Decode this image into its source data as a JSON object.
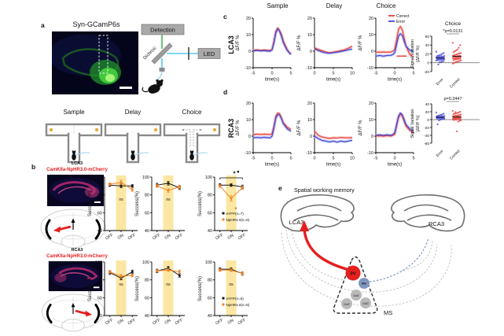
{
  "figure": {
    "panel_a": {
      "label": "a",
      "image_title": "Syn-GCamP6s",
      "detection": "Detection",
      "dichroic": "Dichroic",
      "led": "LED",
      "mazes": [
        {
          "title": "Sample",
          "rewards": [
            "left",
            "right"
          ],
          "divider": true
        },
        {
          "title": "Delay",
          "rewards": [
            "right"
          ]
        },
        {
          "title": "Choice",
          "rewards": [
            "right"
          ],
          "arrows": true
        }
      ]
    },
    "panel_b": {
      "label": "b",
      "groups": [
        {
          "title": "LCA3",
          "virus": "CamKIIa-NpHR3.0-mCherry",
          "arrow_side": "left"
        },
        {
          "title": "RCA3",
          "virus": "CamKIIa-NpHR3.0-mCherry",
          "arrow_side": "right"
        }
      ]
    },
    "panel_c": {
      "label": "c",
      "row_label": "LCA3",
      "col_titles": [
        "Sample",
        "Delay",
        "Choice"
      ]
    },
    "panel_d": {
      "label": "d",
      "row_label": "RCA3"
    },
    "panel_e": {
      "label": "e",
      "title": "Spatial working memory",
      "left_region": "LCA3",
      "right_region": "RCA3",
      "nucleus": "MS",
      "cells": {
        "pv_red": "PV",
        "pv_blue": "PV",
        "chat1": "ChAT",
        "chat2": "ChAT",
        "chat3": "ChAT"
      }
    },
    "colors": {
      "correct": "#e8413c",
      "error": "#4446d8",
      "eyfp": "#1a1a1a",
      "nphr": "#f08224",
      "highlight": "#fbe7a3"
    }
  },
  "chart_data": {
    "lca3_traces": {
      "type": "line",
      "ylabel": "ΔF/F %",
      "ylim": [
        -10,
        20
      ],
      "yticks": [
        20,
        10,
        0,
        -10
      ],
      "plots": [
        {
          "title": "Sample",
          "xlabel": "time(s)",
          "xlim": [
            -5,
            5
          ],
          "xticks": [
            -5,
            0,
            5
          ],
          "x": [
            -5,
            -4,
            -3,
            -2,
            -1,
            -0.5,
            0,
            0.5,
            1,
            1.5,
            2,
            2.5,
            3,
            4,
            5
          ],
          "series": [
            {
              "name": "Correct",
              "color": "#e8413c",
              "band": "#f5a9a6",
              "values": [
                0.5,
                0.8,
                0.5,
                0.7,
                0.5,
                0.5,
                1,
                6,
                12,
                14,
                12.5,
                10,
                6,
                1,
                -2
              ]
            },
            {
              "name": "Error",
              "color": "#4446d8",
              "band": "#9fa8ef",
              "values": [
                0.2,
                0.4,
                0.2,
                0.3,
                0,
                0,
                0.8,
                5,
                11,
                13.5,
                12,
                9,
                5,
                0.5,
                -2
              ]
            }
          ]
        },
        {
          "title": "Delay",
          "xlabel": "time(s)",
          "xlim": [
            0,
            10
          ],
          "xticks": [
            0,
            5,
            10
          ],
          "x": [
            0,
            1,
            2,
            3,
            4,
            5,
            6,
            7,
            8,
            9,
            10
          ],
          "series": [
            {
              "name": "Correct",
              "color": "#e8413c",
              "band": "#f5a9a6",
              "values": [
                2,
                1,
                0.3,
                -0.5,
                -1,
                -0.6,
                -0.2,
                0.3,
                0.8,
                1.8,
                3
              ]
            },
            {
              "name": "Error",
              "color": "#4446d8",
              "band": "#9fa8ef",
              "values": [
                1.5,
                0.4,
                -0.5,
                -1,
                -1.3,
                -0.9,
                -0.6,
                -0.2,
                0.3,
                0.8,
                1.3
              ]
            }
          ]
        },
        {
          "title": "Choice",
          "xlabel": "time(s)",
          "xlim": [
            -5,
            5
          ],
          "xticks": [
            -5,
            0,
            5
          ],
          "legend": true,
          "sig_bar": {
            "x1": 0.5,
            "x2": 3.2,
            "y": -3,
            "color": "#e8413c"
          },
          "x": [
            -5,
            -4,
            -3,
            -2,
            -1,
            -0.5,
            0,
            0.5,
            1,
            1.5,
            2,
            2.5,
            3,
            4,
            5
          ],
          "series": [
            {
              "name": "Correct",
              "color": "#e8413c",
              "band": "#f5a9a6",
              "values": [
                -0.5,
                -0.6,
                -0.5,
                -0.6,
                -0.5,
                0,
                1,
                7,
                13,
                15,
                13,
                8,
                3,
                -2,
                -3.5
              ]
            },
            {
              "name": "Error",
              "color": "#4446d8",
              "band": "#9fa8ef",
              "values": [
                -3,
                -2.6,
                -3,
                -2.6,
                -2.5,
                -2,
                -1,
                4,
                9,
                10.5,
                9.5,
                6,
                3,
                0.5,
                0
              ]
            }
          ]
        }
      ]
    },
    "rca3_traces": {
      "type": "line",
      "ylabel": "ΔF/F %",
      "ylim": [
        -10,
        20
      ],
      "yticks": [
        20,
        10,
        0,
        -10
      ],
      "plots": [
        {
          "title": "Sample",
          "xlabel": "time(s)",
          "xlim": [
            -5,
            5
          ],
          "xticks": [
            -5,
            0,
            5
          ],
          "x": [
            -5,
            -4,
            -3,
            -2,
            -1,
            -0.5,
            0,
            0.5,
            1,
            1.5,
            2,
            2.5,
            3,
            4,
            5
          ],
          "series": [
            {
              "name": "Correct",
              "color": "#e8413c",
              "band": "#f5a9a6",
              "values": [
                1,
                1.2,
                1,
                1.2,
                1,
                1,
                1.5,
                6,
                12,
                14,
                13.5,
                11,
                8,
                5.5,
                4
              ]
            },
            {
              "name": "Error",
              "color": "#4446d8",
              "band": "#9fa8ef",
              "values": [
                -1,
                -0.8,
                -1,
                -0.7,
                -1,
                -1,
                0,
                5,
                11,
                13,
                12.8,
                10.5,
                7.5,
                4.5,
                3
              ]
            }
          ]
        },
        {
          "title": "Delay",
          "xlabel": "time(s)",
          "xlim": [
            0,
            10
          ],
          "xticks": [
            0,
            5,
            10
          ],
          "x": [
            0,
            1,
            2,
            3,
            4,
            5,
            6,
            7,
            8,
            9,
            10
          ],
          "series": [
            {
              "name": "Correct",
              "color": "#e8413c",
              "band": "#f5a9a6",
              "values": [
                3,
                0.5,
                -0.5,
                -1,
                -1.4,
                -1,
                -1.1,
                -0.8,
                -1,
                -1,
                -0.9
              ]
            },
            {
              "name": "Error",
              "color": "#4446d8",
              "band": "#9fa8ef",
              "values": [
                0,
                -1.5,
                -2.6,
                -3,
                -3.5,
                -3,
                -3.6,
                -3,
                -3.4,
                -3,
                -2.5
              ]
            }
          ]
        },
        {
          "title": "Choice",
          "xlabel": "time(s)",
          "xlim": [
            -5,
            5
          ],
          "xticks": [
            -5,
            0,
            5
          ],
          "x": [
            -5,
            -4,
            -3,
            -2,
            -1,
            -0.5,
            0,
            0.5,
            1,
            1.5,
            2,
            2.5,
            3,
            4,
            5
          ],
          "series": [
            {
              "name": "Correct",
              "color": "#e8413c",
              "band": "#f5a9a6",
              "values": [
                0,
                0.2,
                0,
                0.3,
                0,
                0.5,
                1,
                6,
                11,
                13.5,
                12,
                9,
                6,
                3.5,
                2
              ]
            },
            {
              "name": "Error",
              "color": "#4446d8",
              "band": "#9fa8ef",
              "values": [
                0.5,
                0.8,
                0.5,
                0.8,
                0.5,
                1,
                2,
                7,
                12,
                14,
                13,
                10,
                7,
                4.5,
                3
              ]
            }
          ]
        }
      ]
    },
    "lca3_scatter": {
      "type": "scatter",
      "title": "Choice",
      "p_label": "*p=0.0131",
      "ylabel_lines": [
        "Signal Variation",
        "(ΔF/F %)"
      ],
      "ylim": [
        -20,
        60
      ],
      "yticks": [
        60,
        40,
        20,
        0,
        -20
      ],
      "groups": [
        {
          "label": "Error",
          "color": "#4446d8",
          "values": [
            25,
            22,
            20,
            18,
            17,
            16,
            15,
            15,
            14,
            14,
            13,
            13,
            12,
            12,
            11,
            11,
            10,
            10,
            9,
            9,
            8,
            8,
            7,
            7,
            6,
            6,
            5,
            4,
            3,
            2,
            1,
            -4
          ]
        },
        {
          "label": "Correct",
          "color": "#e8413c",
          "values": [
            45,
            40,
            34,
            30,
            28,
            26,
            24,
            22,
            21,
            20,
            19,
            18,
            17,
            16,
            16,
            15,
            15,
            14,
            14,
            13,
            13,
            12,
            12,
            11,
            11,
            10,
            10,
            9,
            9,
            8,
            8,
            7,
            6,
            5,
            4,
            3,
            2,
            1,
            0,
            -2
          ]
        }
      ]
    },
    "rca3_scatter": {
      "type": "scatter",
      "p_label": "p=0.3447",
      "ylabel_lines": [
        "Signal Variation",
        "(ΔF/F %)"
      ],
      "ylim": [
        -60,
        40
      ],
      "yticks": [
        40,
        20,
        0,
        -20,
        -40,
        -60
      ],
      "groups": [
        {
          "label": "Error",
          "color": "#4446d8",
          "values": [
            18,
            15,
            13,
            12,
            11,
            10,
            9,
            9,
            8,
            8,
            7,
            7,
            6,
            6,
            5,
            5,
            4,
            4,
            3,
            3,
            2,
            2,
            1,
            0,
            -2,
            -12
          ]
        },
        {
          "label": "Correct",
          "color": "#e8413c",
          "values": [
            22,
            20,
            18,
            17,
            16,
            15,
            14,
            13,
            12,
            11,
            10,
            10,
            9,
            9,
            8,
            8,
            7,
            7,
            6,
            6,
            5,
            5,
            4,
            4,
            3,
            3,
            2,
            2,
            1,
            1,
            0,
            0,
            -1,
            -2,
            -3,
            -5,
            -30,
            19
          ]
        }
      ]
    },
    "lca3_success": {
      "type": "line",
      "ylabel": "Success(%)",
      "ylim": [
        40,
        100
      ],
      "yticks": [
        40,
        60,
        80,
        100
      ],
      "categories": [
        "OFF",
        "ON",
        "OFF"
      ],
      "highlight": "#fbe7a3",
      "highlight_index": 1,
      "legend": [
        {
          "name": "eYFP(n=7)",
          "color": "#1a1a1a",
          "marker": "square"
        },
        {
          "name": "NpHR3.0(n=9)",
          "color": "#f08224",
          "marker": "circle"
        }
      ],
      "plots": [
        {
          "sig": "ns",
          "series": [
            {
              "values": [
                91,
                90,
                90
              ],
              "errors": [
                1.5,
                2,
                1.5
              ]
            },
            {
              "values": [
                92,
                94,
                86
              ],
              "errors": [
                1.5,
                2.5,
                2
              ]
            }
          ]
        },
        {
          "sig": "ns",
          "series": [
            {
              "values": [
                91,
                93,
                88
              ],
              "errors": [
                2,
                2,
                2
              ]
            },
            {
              "values": [
                90,
                85,
                89
              ],
              "errors": [
                1.5,
                2,
                2
              ]
            }
          ]
        },
        {
          "sig": "*",
          "bracket": true,
          "show_legend": true,
          "points": [
            {
              "fx": 0.71,
              "value": 106,
              "color": "#1a1a1a"
            },
            {
              "fx": 0.64,
              "value": 65,
              "color": "#f08224"
            }
          ],
          "series": [
            {
              "values": [
                91,
                91,
                89
              ],
              "errors": [
                1.5,
                1.5,
                2
              ]
            },
            {
              "values": [
                90,
                76,
                88
              ],
              "errors": [
                1.5,
                3,
                2
              ]
            }
          ]
        }
      ]
    },
    "rca3_success": {
      "type": "line",
      "ylabel": "Success(%)",
      "ylim": [
        40,
        100
      ],
      "yticks": [
        40,
        60,
        80,
        100
      ],
      "categories": [
        "OFF",
        "ON",
        "OFF"
      ],
      "highlight": "#fbe7a3",
      "highlight_index": 1,
      "legend": [
        {
          "name": "eYFP(n=6)",
          "color": "#1a1a1a",
          "marker": "square"
        },
        {
          "name": "NpHR3.0(n=8)",
          "color": "#f08224",
          "marker": "circle"
        }
      ],
      "plots": [
        {
          "sig": "ns",
          "series": [
            {
              "values": [
                88,
                82,
                89
              ],
              "errors": [
                2,
                2,
                2
              ]
            },
            {
              "values": [
                89,
                84,
                85
              ],
              "errors": [
                1.5,
                2,
                1.5
              ]
            }
          ]
        },
        {
          "sig": "ns",
          "series": [
            {
              "values": [
                90,
                93,
                85
              ],
              "errors": [
                2,
                2,
                2
              ]
            },
            {
              "values": [
                90,
                91,
                89
              ],
              "errors": [
                1.5,
                1.5,
                2
              ]
            }
          ]
        },
        {
          "sig": "ns",
          "show_legend": true,
          "series": [
            {
              "values": [
                92,
                92,
                87
              ],
              "errors": [
                1.5,
                1.5,
                2
              ]
            },
            {
              "values": [
                91,
                91,
                87
              ],
              "errors": [
                1.5,
                1.5,
                2
              ]
            }
          ]
        }
      ]
    }
  }
}
